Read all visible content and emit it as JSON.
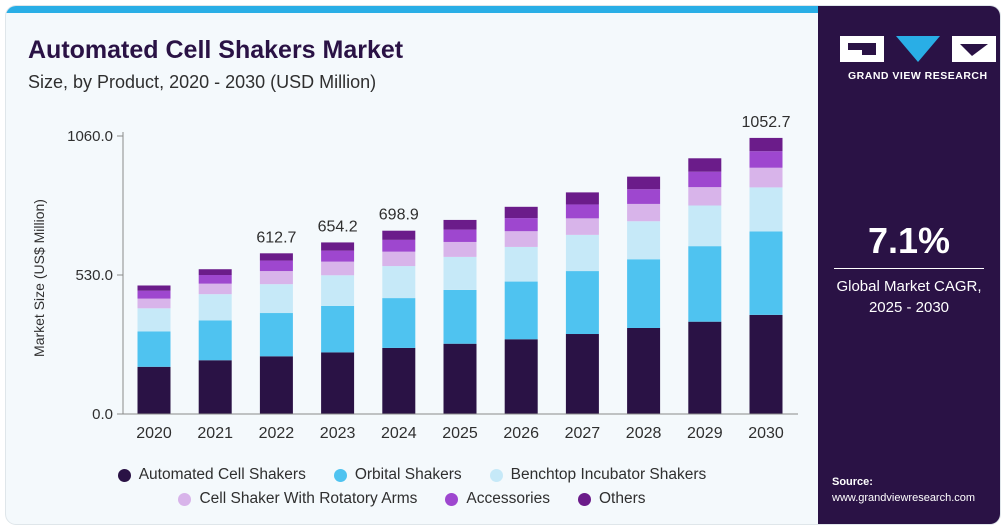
{
  "title": "Automated Cell Shakers Market",
  "subtitle": "Size, by Product, 2020 - 2030 (USD Million)",
  "brand": {
    "name": "GRAND VIEW RESEARCH"
  },
  "cagr": {
    "value": "7.1%",
    "label_line1": "Global Market CAGR,",
    "label_line2": "2025 - 2030"
  },
  "source": {
    "label": "Source:",
    "url": "www.grandviewresearch.com"
  },
  "colors": {
    "automated": "#2a1245",
    "orbital": "#4fc3f0",
    "benchtop": "#c6e9f8",
    "rotatory": "#d8b4ea",
    "accessories": "#9e47cf",
    "others": "#6b1c8a",
    "panel": "#2a1245",
    "accent_bar": "#29aee6"
  },
  "chart_data": {
    "type": "bar",
    "stacked": true,
    "categories": [
      "2020",
      "2021",
      "2022",
      "2023",
      "2024",
      "2025",
      "2026",
      "2027",
      "2028",
      "2029",
      "2030"
    ],
    "ylabel": "Market Size (US$ Million)",
    "ylim": [
      0,
      1060
    ],
    "yticks": [
      "0.0",
      "530.0",
      "1060.0"
    ],
    "ytick_values": [
      0,
      530,
      1060
    ],
    "grid": false,
    "legend_position": "bottom",
    "totals": [
      490,
      552,
      612.7,
      654.2,
      698.9,
      740,
      790,
      845,
      905,
      975,
      1052.7
    ],
    "total_labels": {
      "2": "612.7",
      "3": "654.2",
      "4": "698.9",
      "10": "1052.7"
    },
    "series": [
      {
        "name": "Automated Cell Shakers",
        "color": "#2a1245",
        "values": [
          180,
          205,
          220,
          235,
          252,
          268,
          285,
          305,
          328,
          352,
          378
        ]
      },
      {
        "name": "Orbital Shakers",
        "color": "#4fc3f0",
        "values": [
          135,
          152,
          165,
          177,
          190,
          205,
          220,
          240,
          262,
          288,
          318
        ]
      },
      {
        "name": "Benchtop Incubator Shakers",
        "color": "#c6e9f8",
        "values": [
          88,
          100,
          110,
          117,
          122,
          126,
          132,
          138,
          145,
          155,
          168
        ]
      },
      {
        "name": "Cell Shaker With Rotatory Arms",
        "color": "#d8b4ea",
        "values": [
          37,
          40,
          50,
          52,
          55,
          57,
          60,
          63,
          66,
          70,
          75
        ]
      },
      {
        "name": "Accessories",
        "color": "#9e47cf",
        "values": [
          30,
          33,
          40,
          42,
          45,
          47,
          50,
          53,
          56,
          59,
          63
        ]
      },
      {
        "name": "Others",
        "color": "#6b1c8a",
        "values": [
          20,
          22,
          27.7,
          31.2,
          34.9,
          37,
          43,
          46,
          48,
          51,
          50.7
        ]
      }
    ]
  }
}
